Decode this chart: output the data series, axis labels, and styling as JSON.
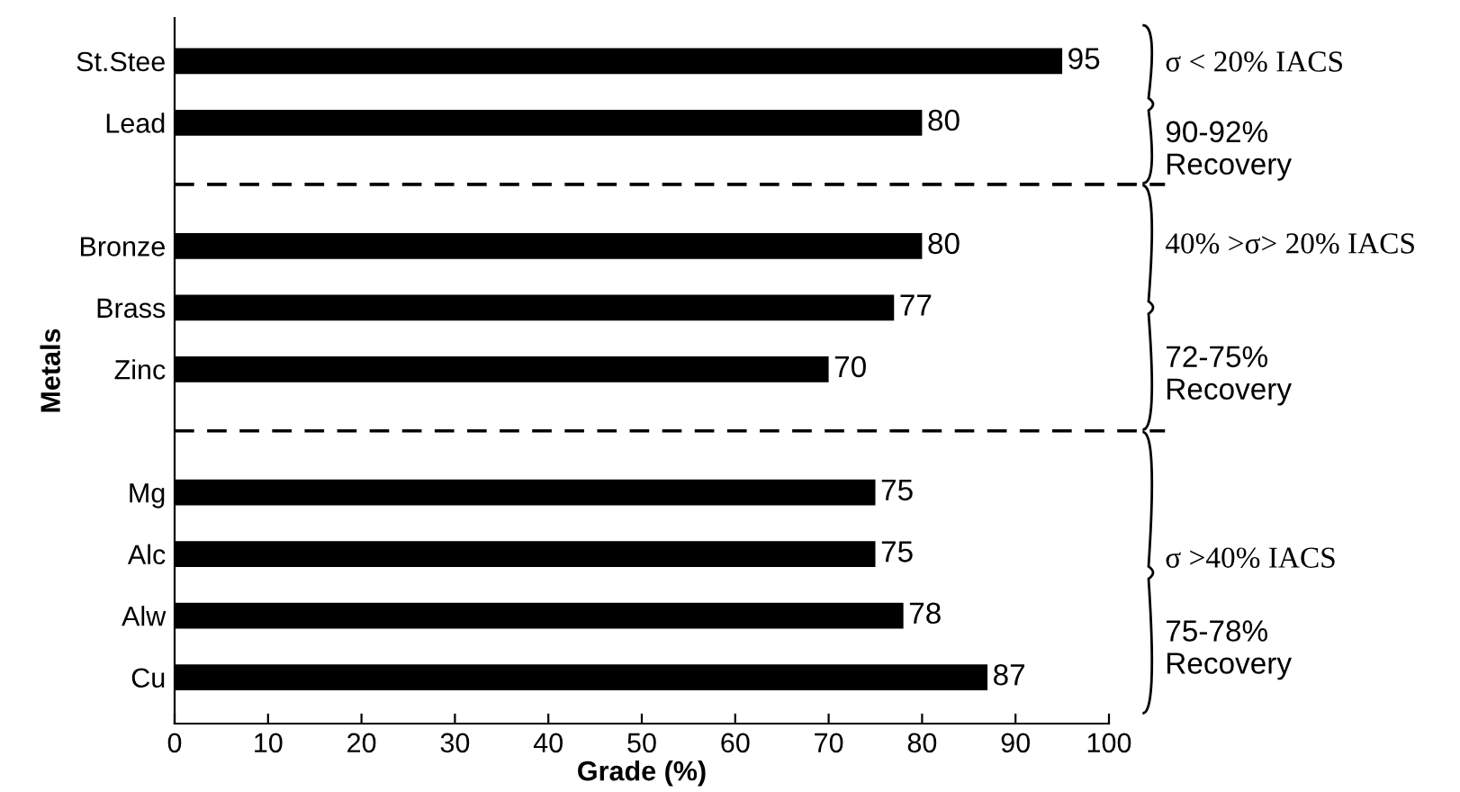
{
  "chart_data": {
    "type": "bar",
    "orientation": "horizontal",
    "xlabel": "Grade (%)",
    "ylabel": "Metals",
    "categories": [
      "St.Stee",
      "Lead",
      null,
      "Bronze",
      "Brass",
      "Zinc",
      null,
      "Mg",
      "Alc",
      "Alw",
      "Cu"
    ],
    "values": [
      95,
      80,
      null,
      80,
      77,
      70,
      null,
      75,
      75,
      78,
      87
    ],
    "color": "#000000",
    "data_labels": true,
    "grid": false,
    "xlim": [
      0,
      100
    ],
    "xticks": [
      0,
      10,
      20,
      30,
      40,
      50,
      60,
      70,
      80,
      90,
      100
    ],
    "annotations": [
      "σ < 20% IACS",
      "90-92%\nRecovery",
      "40% >σ> 20% IACS",
      "72-75%\nRecovery",
      "σ >40% IACS",
      "75-78%\nRecovery"
    ]
  }
}
